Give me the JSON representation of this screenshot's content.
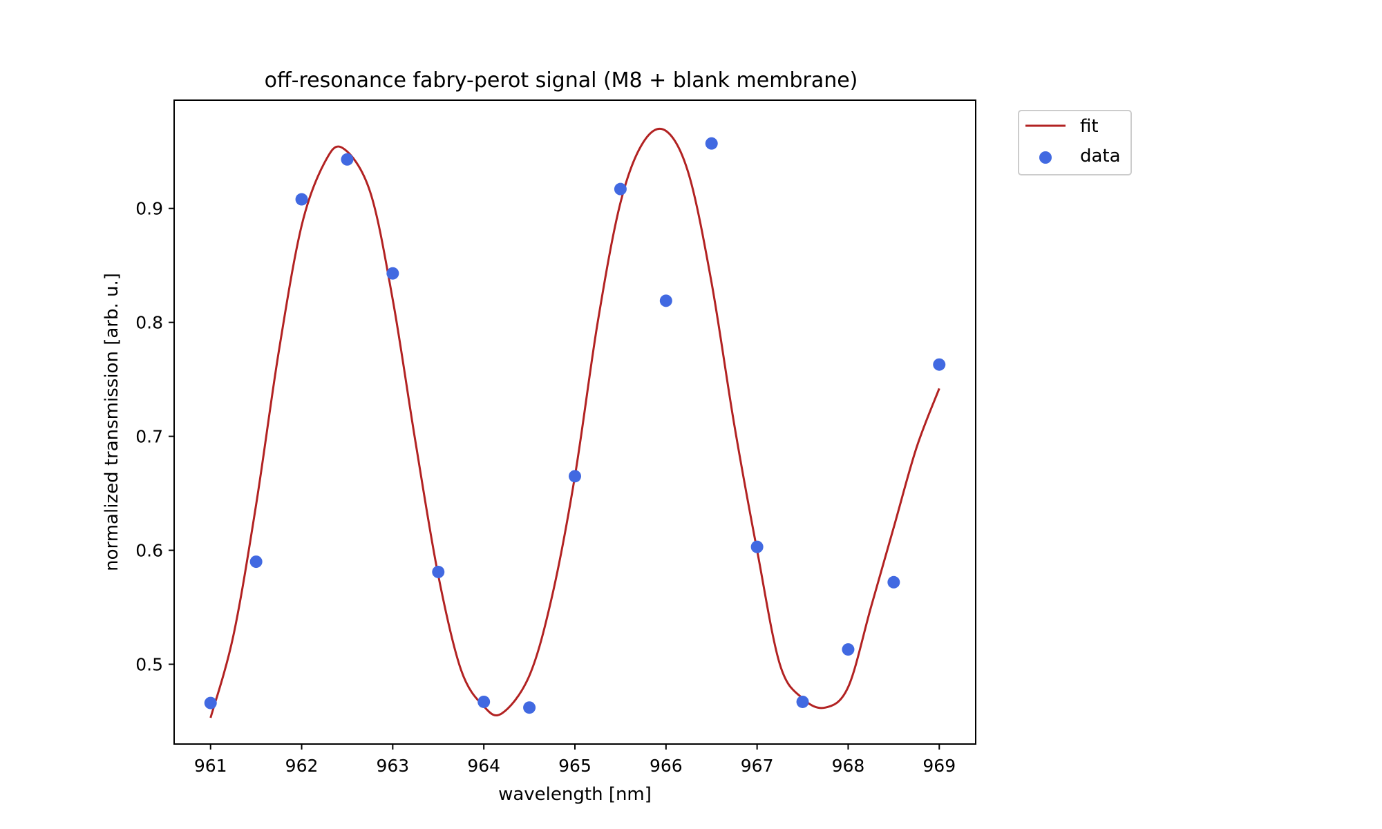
{
  "chart_data": {
    "type": "line",
    "title": "off-resonance fabry-perot signal (M8 + blank membrane)",
    "xlabel": "wavelength [nm]",
    "ylabel": "normalized transmission [arb. u.]",
    "xlim": [
      960.6,
      969.4
    ],
    "ylim": [
      0.43,
      0.995
    ],
    "x_ticks": [
      961,
      962,
      963,
      964,
      965,
      966,
      967,
      968,
      969
    ],
    "y_ticks": [
      0.5,
      0.6,
      0.7,
      0.8,
      0.9
    ],
    "x_tick_labels": [
      "961",
      "962",
      "963",
      "964",
      "965",
      "966",
      "967",
      "968",
      "969"
    ],
    "y_tick_labels": [
      "0.5",
      "0.6",
      "0.7",
      "0.8",
      "0.9"
    ],
    "grid": false,
    "legend_position": "outside-top-right",
    "series": [
      {
        "name": "fit",
        "kind": "line",
        "color": "#b22222",
        "x": [
          961.0,
          961.25,
          961.5,
          961.75,
          962.0,
          962.25,
          962.45,
          962.75,
          963.0,
          963.25,
          963.5,
          963.75,
          964.0,
          964.2,
          964.5,
          964.75,
          965.0,
          965.25,
          965.5,
          965.75,
          966.0,
          966.25,
          966.5,
          966.75,
          967.0,
          967.25,
          967.5,
          967.75,
          968.0,
          968.25,
          968.5,
          968.75,
          969.0
        ],
        "y": [
          0.453,
          0.525,
          0.64,
          0.775,
          0.885,
          0.94,
          0.953,
          0.915,
          0.82,
          0.695,
          0.578,
          0.495,
          0.463,
          0.457,
          0.49,
          0.56,
          0.665,
          0.8,
          0.905,
          0.958,
          0.968,
          0.93,
          0.835,
          0.71,
          0.6,
          0.5,
          0.47,
          0.462,
          0.48,
          0.55,
          0.62,
          0.69,
          0.742
        ]
      },
      {
        "name": "data",
        "kind": "scatter",
        "color": "#4169e1",
        "x": [
          961.0,
          961.5,
          962.0,
          962.5,
          963.0,
          963.5,
          964.0,
          964.5,
          965.0,
          965.5,
          966.0,
          966.5,
          967.0,
          967.5,
          968.0,
          968.5,
          969.0
        ],
        "y": [
          0.466,
          0.59,
          0.908,
          0.943,
          0.843,
          0.581,
          0.467,
          0.462,
          0.665,
          0.917,
          0.819,
          0.957,
          0.603,
          0.467,
          0.513,
          0.572,
          0.763
        ]
      }
    ]
  }
}
